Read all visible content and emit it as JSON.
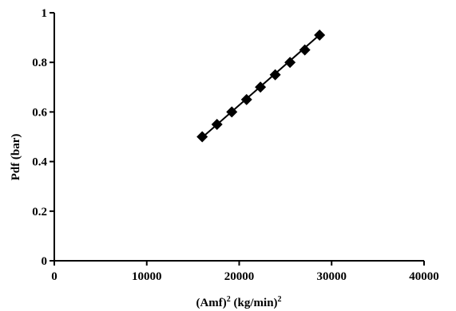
{
  "chart_data": {
    "type": "scatter",
    "title": "",
    "xlabel": {
      "base": "(Amf)",
      "base_sup": "2",
      "unit": " (kg/min)",
      "unit_sup": "2"
    },
    "ylabel": "Pdf (bar)",
    "xlim": [
      0,
      40000
    ],
    "ylim": [
      0,
      1
    ],
    "xticks": [
      0,
      10000,
      20000,
      30000,
      40000
    ],
    "xtick_labels": [
      "0",
      "10000",
      "20000",
      "30000",
      "40000"
    ],
    "yticks": [
      0,
      0.2,
      0.4,
      0.6,
      0.8,
      1
    ],
    "ytick_labels": [
      "0",
      "0.2",
      "0.4",
      "0.6",
      "0.8",
      "1"
    ],
    "grid": false,
    "marker": "diamond",
    "series": [
      {
        "marker_color": "#000000",
        "points": [
          {
            "x": 16000,
            "y": 0.5
          },
          {
            "x": 17600,
            "y": 0.55
          },
          {
            "x": 19200,
            "y": 0.6
          },
          {
            "x": 20800,
            "y": 0.65
          },
          {
            "x": 22300,
            "y": 0.7
          },
          {
            "x": 23900,
            "y": 0.75
          },
          {
            "x": 25500,
            "y": 0.8
          },
          {
            "x": 27100,
            "y": 0.85
          },
          {
            "x": 28700,
            "y": 0.91
          }
        ]
      }
    ],
    "fit_line": {
      "x_start": 16000,
      "y_start": 0.497,
      "x_end": 28700,
      "y_end": 0.911
    }
  }
}
